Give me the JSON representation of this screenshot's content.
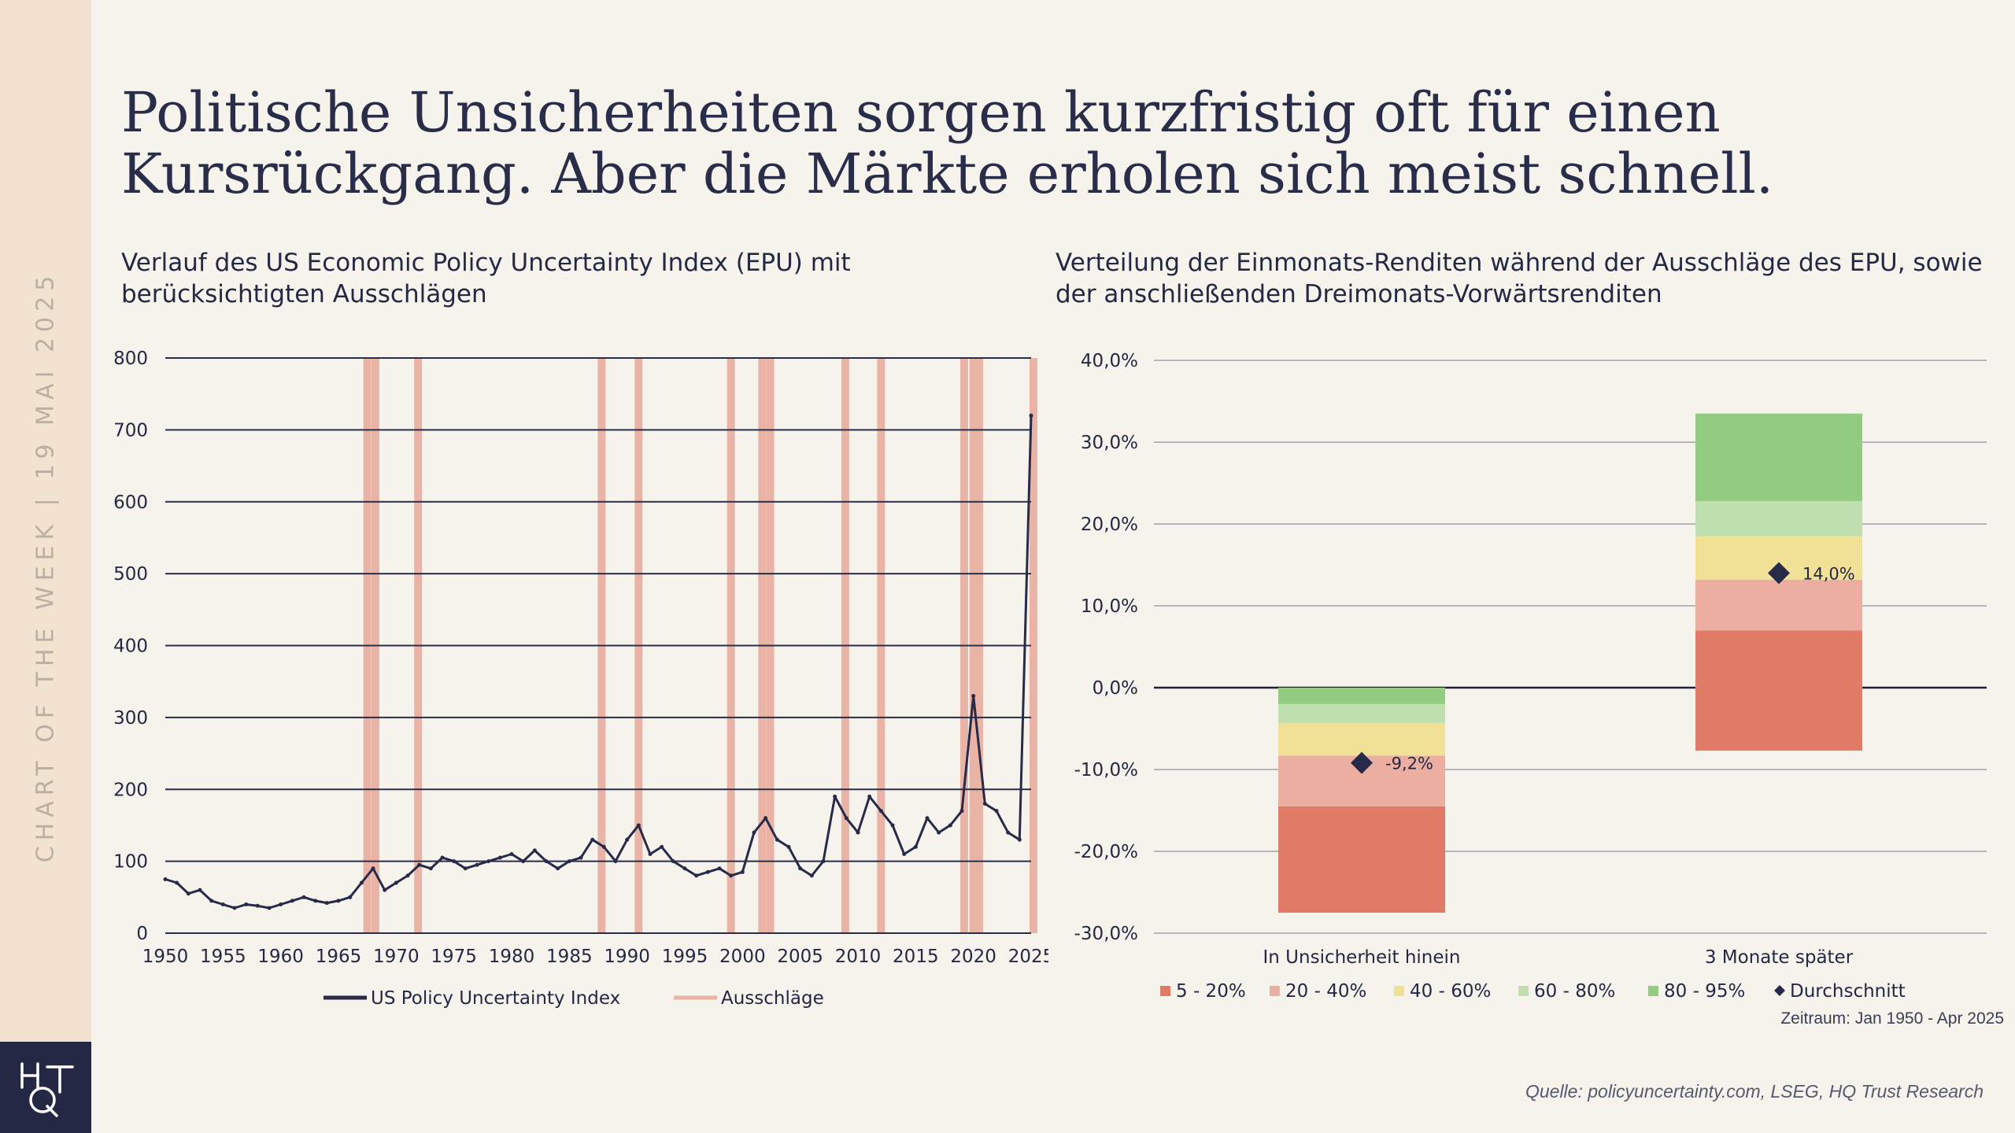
{
  "header": {
    "headline": "Politische Unsicherheiten sorgen kurzfristig oft für einen Kursrückgang. Aber die Märkte erholen sich meist schnell.",
    "side_label": "CHART OF THE WEEK | 19 MAI 2025",
    "logo_text": "HQT"
  },
  "colors": {
    "epu_line": "#272a48",
    "spike": "#e9b3a6",
    "p5_20": "#e07b68",
    "p20_40": "#ebaea0",
    "p40_60": "#f1e196",
    "p60_80": "#bfe0ae",
    "p80_95": "#92cc80",
    "mean_marker": "#272a48"
  },
  "footer": {
    "period": "Zeitraum: Jan 1950 - Apr 2025",
    "source": "Quelle: policyuncertainty.com, LSEG, HQ Trust Research"
  },
  "chart_data": [
    {
      "type": "line",
      "title": "Verlauf des US Economic Policy Uncertainty Index (EPU) mit berücksichtigten Ausschlägen",
      "x_ticks": [
        1950,
        1955,
        1960,
        1965,
        1970,
        1975,
        1980,
        1985,
        1990,
        1995,
        2000,
        2005,
        2010,
        2015,
        2020,
        2025
      ],
      "ylim": [
        0,
        800
      ],
      "y_ticks": [
        0,
        100,
        200,
        300,
        400,
        500,
        600,
        700,
        800
      ],
      "grid": true,
      "legend_position": "bottom",
      "series": [
        {
          "name": "US Policy Uncertainty Index",
          "x": [
            1950,
            1951,
            1952,
            1953,
            1954,
            1955,
            1956,
            1957,
            1958,
            1959,
            1960,
            1961,
            1962,
            1963,
            1964,
            1965,
            1966,
            1967,
            1968,
            1969,
            1970,
            1971,
            1972,
            1973,
            1974,
            1975,
            1976,
            1977,
            1978,
            1979,
            1980,
            1981,
            1982,
            1983,
            1984,
            1985,
            1986,
            1987,
            1988,
            1989,
            1990,
            1991,
            1992,
            1993,
            1994,
            1995,
            1996,
            1997,
            1998,
            1999,
            2000,
            2001,
            2002,
            2003,
            2004,
            2005,
            2006,
            2007,
            2008,
            2009,
            2010,
            2011,
            2012,
            2013,
            2014,
            2015,
            2016,
            2017,
            2018,
            2019,
            2020,
            2021,
            2022,
            2023,
            2024,
            2025
          ],
          "values": [
            75,
            70,
            55,
            60,
            45,
            40,
            35,
            40,
            38,
            35,
            40,
            45,
            50,
            45,
            42,
            45,
            50,
            70,
            90,
            60,
            70,
            80,
            95,
            90,
            105,
            100,
            90,
            95,
            100,
            105,
            110,
            100,
            115,
            100,
            90,
            100,
            105,
            130,
            120,
            100,
            130,
            150,
            110,
            120,
            100,
            90,
            80,
            85,
            90,
            80,
            85,
            140,
            160,
            130,
            120,
            90,
            80,
            100,
            190,
            160,
            140,
            190,
            170,
            150,
            110,
            120,
            160,
            140,
            150,
            170,
            330,
            180,
            170,
            140,
            130,
            720
          ]
        }
      ],
      "spikes_label": "Ausschläge",
      "spikes": [
        1967.5,
        1968.2,
        1971.9,
        1987.8,
        1991.0,
        1999.0,
        2001.7,
        2002.4,
        2008.9,
        2012.0,
        2019.2,
        2020.0,
        2020.5,
        2025.2
      ]
    },
    {
      "type": "bar",
      "title": "Verteilung der Einmonats-Renditen während der Ausschläge des EPU, sowie der anschließenden Dreimonats-Vorwärtsrenditen",
      "categories": [
        "In Unsicherheit hinein",
        "3 Monate später"
      ],
      "ylim": [
        -30,
        40
      ],
      "y_ticks": [
        "40,0%",
        "30,0%",
        "20,0%",
        "10,0%",
        "0,0%",
        "-10,0%",
        "-20,0%",
        "-30,0%"
      ],
      "grid": true,
      "legend_position": "bottom",
      "legend": [
        "5 - 20%",
        "20 - 40%",
        "40 - 60%",
        "60 - 80%",
        "80 - 95%",
        "Durchschnitt"
      ],
      "bands": [
        {
          "category": "In Unsicherheit hinein",
          "segments": [
            [
              -27.5,
              -14.5
            ],
            [
              -14.5,
              -8.3
            ],
            [
              -8.3,
              -4.3
            ],
            [
              -4.3,
              -2.0
            ],
            [
              -2.0,
              0.0
            ]
          ],
          "mean": -9.2,
          "mean_label": "-9,2%"
        },
        {
          "category": "3 Monate später",
          "segments": [
            [
              -7.7,
              7.0
            ],
            [
              7.0,
              13.2
            ],
            [
              13.2,
              18.5
            ],
            [
              18.5,
              22.8
            ],
            [
              22.8,
              33.5
            ]
          ],
          "mean": 14.0,
          "mean_label": "14,0%"
        }
      ]
    }
  ]
}
